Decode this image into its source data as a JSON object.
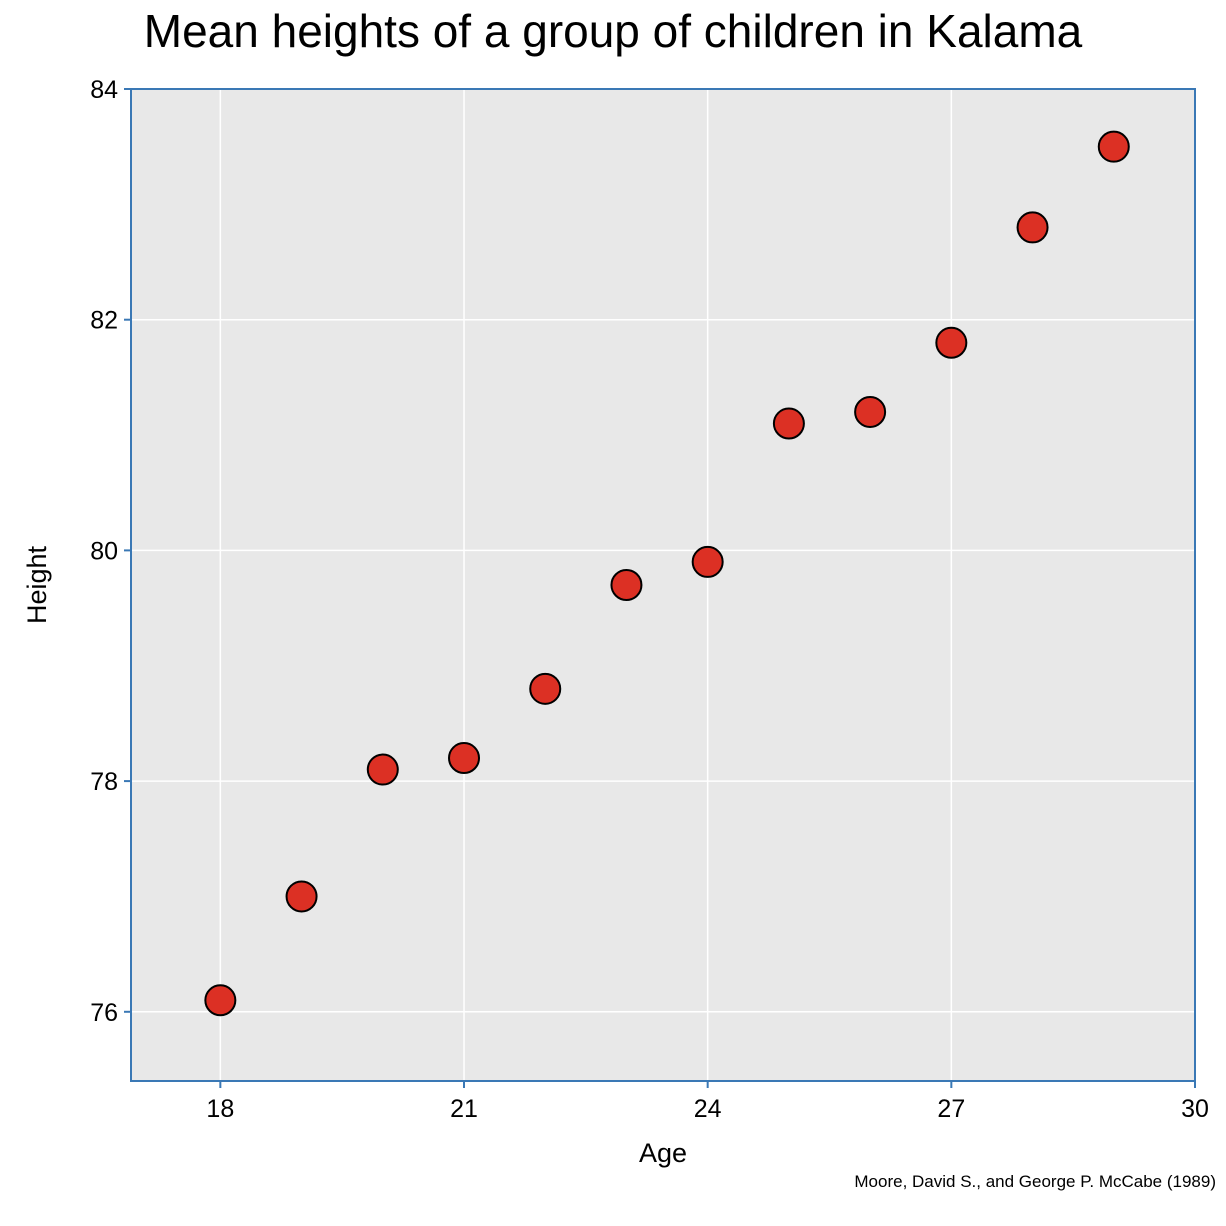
{
  "chart_data": {
    "type": "scatter",
    "title": "Mean heights of a group of children in Kalama",
    "xlabel": "Age",
    "ylabel": "Height",
    "source": "Moore, David S., and George P. McCabe (1989)",
    "xlim": [
      16.9,
      30
    ],
    "ylim": [
      75.4,
      84
    ],
    "xticks": [
      18,
      21,
      24,
      27,
      30
    ],
    "yticks": [
      76,
      78,
      80,
      82,
      84
    ],
    "grid": true,
    "series": [
      {
        "x": [
          18,
          19,
          20,
          21,
          22,
          23,
          24,
          25,
          26,
          27,
          28,
          29
        ],
        "y": [
          76.1,
          77.0,
          78.1,
          78.2,
          78.8,
          79.7,
          79.9,
          81.1,
          81.2,
          81.8,
          82.8,
          83.5
        ]
      }
    ],
    "colors": {
      "marker_fill": "#dc3024",
      "marker_edge": "#000000",
      "plot_background": "#e8e8e8",
      "grid": "#ffffff",
      "axis": "#3a78b5"
    }
  }
}
